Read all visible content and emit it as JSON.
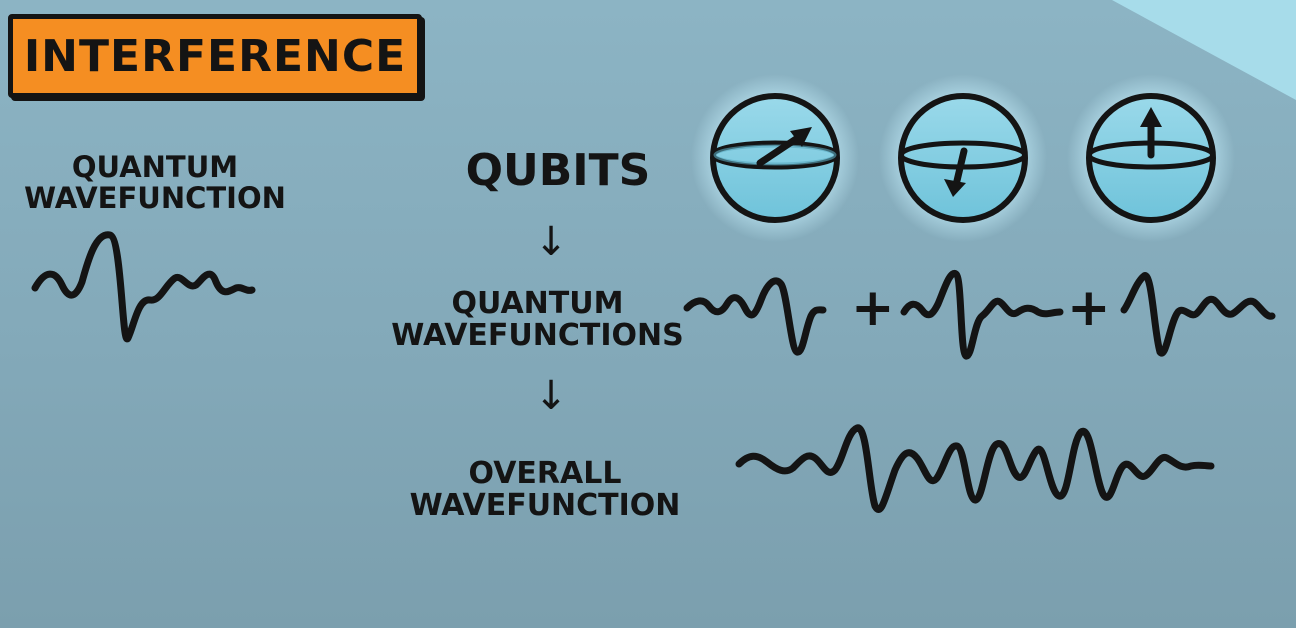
{
  "title": "INTERFERENCE",
  "left_label": [
    "QUANTUM",
    "WAVEFUNCTION"
  ],
  "flow": {
    "step1": "QUBITS",
    "step2": [
      "QUANTUM",
      "WAVEFUNCTIONS"
    ],
    "step3": [
      "OVERALL",
      "WAVEFUNCTION"
    ],
    "arrow_glyph": "↓",
    "plus_glyph": "+"
  },
  "qubits": [
    {
      "state_arrow": "up-right"
    },
    {
      "state_arrow": "down"
    },
    {
      "state_arrow": "up"
    }
  ],
  "colors": {
    "accent": "#f58e22",
    "ink": "#141414",
    "sphere": "#7fcfe2",
    "background": "#87afbf"
  }
}
